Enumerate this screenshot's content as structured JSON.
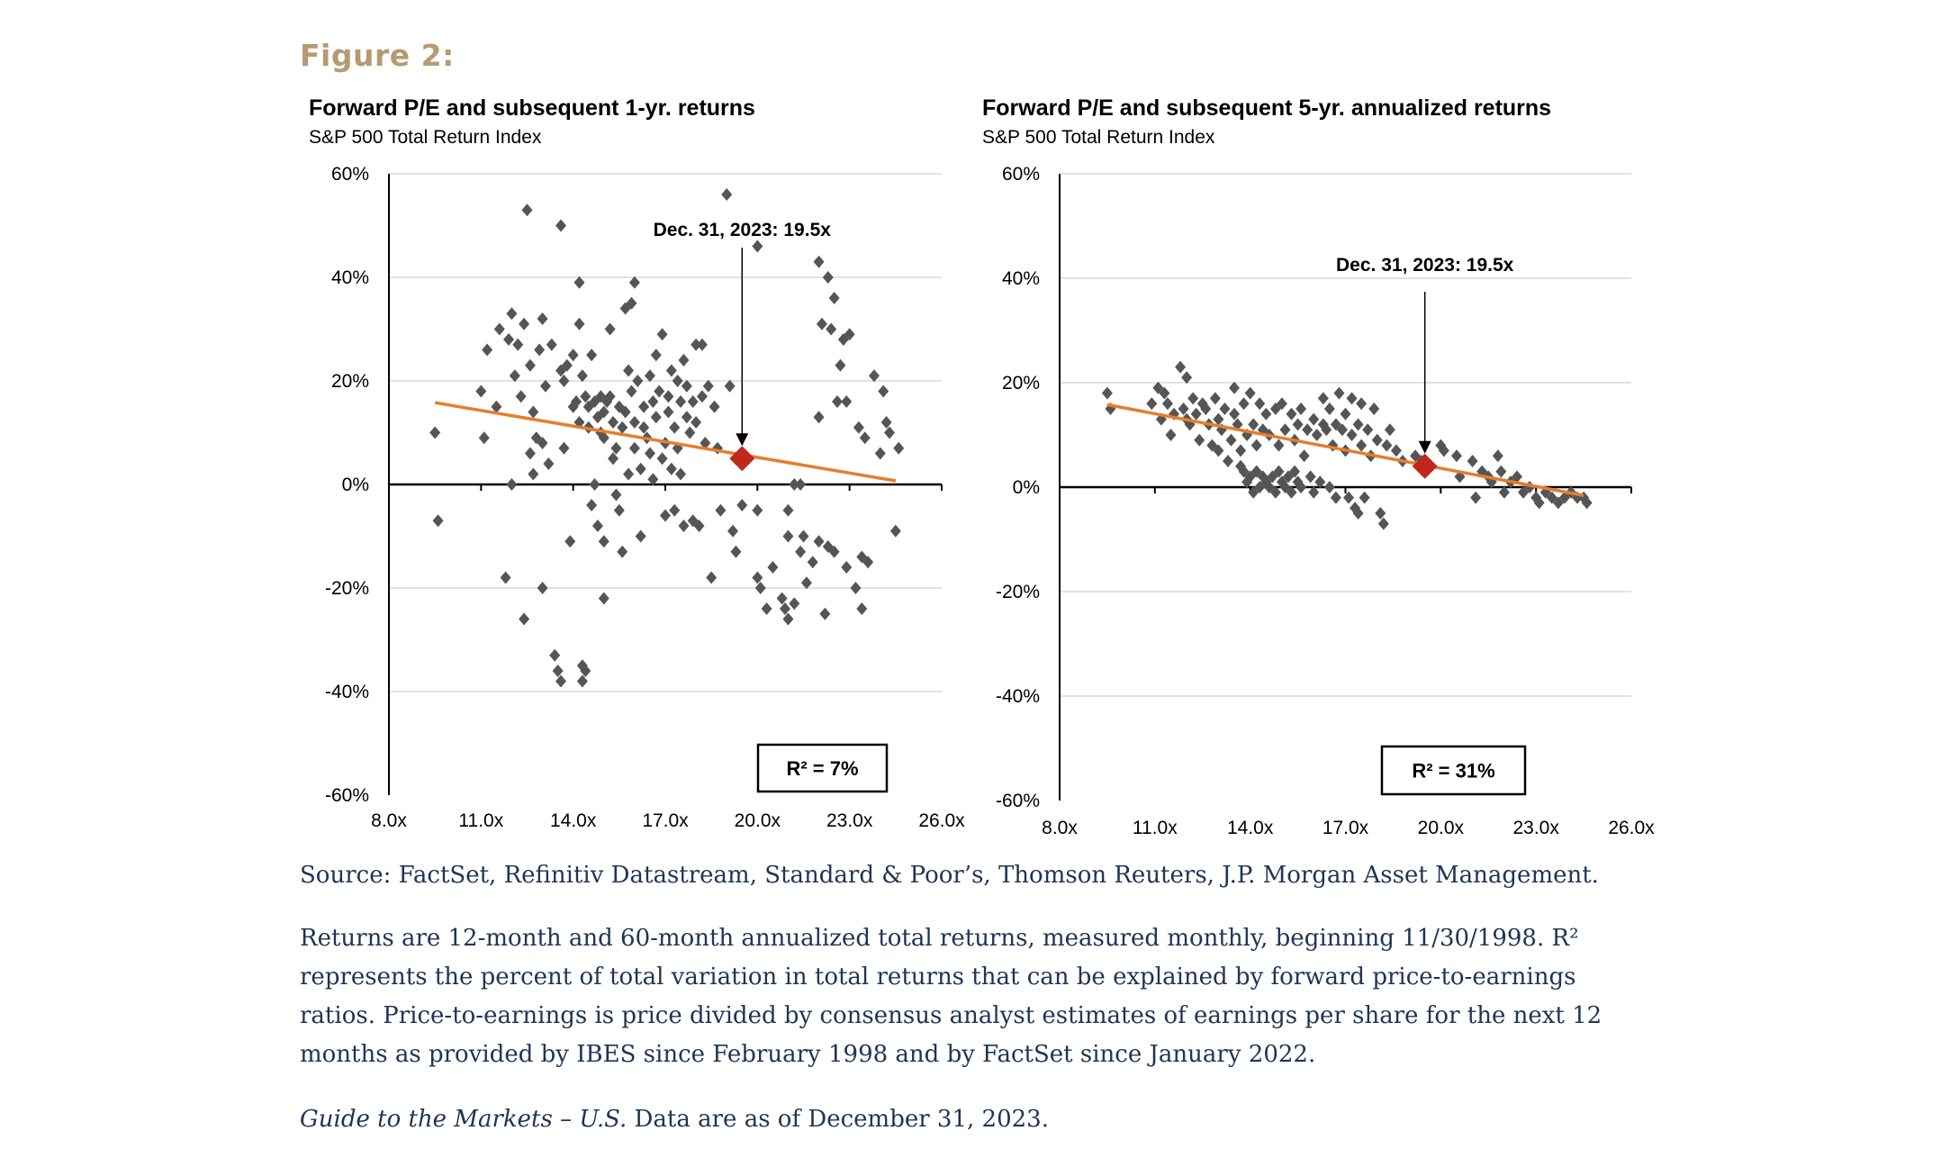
{
  "figure_label": "Figure 2:",
  "source": "Source: FactSet, Refinitiv Datastream, Standard & Poor’s, Thomson Reuters, J.P. Morgan Asset Management.",
  "note": "Returns are 12-month and 60-month annualized total returns, measured monthly, beginning 11/30/1998. R² represents the percent of total variation in total returns that can be explained by forward price-to-earnings ratios. Price-to-earnings is price divided by consensus analyst estimates of earnings per share for the next 12 months as provided by IBES since February 1998 and by FactSet since January 2022.",
  "guide_italic": "Guide to the Markets – U.S.",
  "guide_rest": " Data are as of December 31, 2023.",
  "colors": {
    "points": "#555555",
    "trend": "#e87d2a",
    "highlight": "#c0281e",
    "label": "#b59a73",
    "text": "#1f3456"
  },
  "chart_data": [
    {
      "type": "scatter",
      "title": "Forward P/E and subsequent 1-yr. returns",
      "subtitle": "S&P 500 Total Return Index",
      "xlim": [
        8,
        26
      ],
      "ylim": [
        -60,
        60
      ],
      "x_ticks": [
        "8.0x",
        "11.0x",
        "14.0x",
        "17.0x",
        "20.0x",
        "23.0x",
        "26.0x"
      ],
      "y_ticks": [
        "60%",
        "40%",
        "20%",
        "0%",
        "-20%",
        "-40%",
        "-60%"
      ],
      "annotation": "Dec. 31, 2023:  19.5x",
      "highlight": {
        "x": 19.5,
        "y": 5
      },
      "trendline": [
        [
          9.5,
          15.8
        ],
        [
          24.5,
          0.7
        ]
      ],
      "r_squared_label": "R²  = 7%",
      "points": [
        [
          9.5,
          10
        ],
        [
          9.6,
          -7
        ],
        [
          11.0,
          18
        ],
        [
          11.1,
          9
        ],
        [
          11.2,
          26
        ],
        [
          11.5,
          15
        ],
        [
          11.6,
          30
        ],
        [
          11.8,
          -18
        ],
        [
          11.9,
          28
        ],
        [
          12.0,
          33
        ],
        [
          12.0,
          0
        ],
        [
          12.1,
          21
        ],
        [
          12.2,
          27
        ],
        [
          12.3,
          17
        ],
        [
          12.4,
          31
        ],
        [
          12.4,
          -26
        ],
        [
          12.5,
          53
        ],
        [
          12.6,
          6
        ],
        [
          12.6,
          23
        ],
        [
          12.7,
          14
        ],
        [
          12.7,
          2
        ],
        [
          12.8,
          9
        ],
        [
          12.9,
          26
        ],
        [
          13.0,
          -20
        ],
        [
          13.0,
          8
        ],
        [
          13.0,
          32
        ],
        [
          13.1,
          19
        ],
        [
          13.2,
          4
        ],
        [
          13.3,
          27
        ],
        [
          13.4,
          -33
        ],
        [
          13.5,
          -36
        ],
        [
          13.6,
          50
        ],
        [
          13.6,
          -38
        ],
        [
          13.6,
          22
        ],
        [
          13.7,
          7
        ],
        [
          13.7,
          20
        ],
        [
          13.8,
          23
        ],
        [
          13.9,
          -11
        ],
        [
          14.0,
          25
        ],
        [
          14.0,
          15
        ],
        [
          14.1,
          16
        ],
        [
          14.2,
          31
        ],
        [
          14.2,
          39
        ],
        [
          14.2,
          12
        ],
        [
          14.3,
          -35
        ],
        [
          14.3,
          -38
        ],
        [
          14.3,
          21
        ],
        [
          14.4,
          17
        ],
        [
          14.4,
          -36
        ],
        [
          14.5,
          15
        ],
        [
          14.5,
          11
        ],
        [
          14.6,
          25
        ],
        [
          14.6,
          -4
        ],
        [
          14.7,
          16
        ],
        [
          14.7,
          0
        ],
        [
          14.8,
          -8
        ],
        [
          14.8,
          13
        ],
        [
          14.9,
          10
        ],
        [
          14.9,
          17
        ],
        [
          15.0,
          14
        ],
        [
          15.0,
          9
        ],
        [
          15.0,
          -11
        ],
        [
          15.0,
          -22
        ],
        [
          15.1,
          16
        ],
        [
          15.2,
          17
        ],
        [
          15.2,
          30
        ],
        [
          15.3,
          12
        ],
        [
          15.3,
          5
        ],
        [
          15.4,
          7
        ],
        [
          15.4,
          -2
        ],
        [
          15.5,
          -5
        ],
        [
          15.5,
          15
        ],
        [
          15.6,
          -13
        ],
        [
          15.6,
          11
        ],
        [
          15.7,
          34
        ],
        [
          15.7,
          14
        ],
        [
          15.8,
          22
        ],
        [
          15.8,
          2
        ],
        [
          15.9,
          35
        ],
        [
          15.9,
          18
        ],
        [
          16.0,
          39
        ],
        [
          16.0,
          12
        ],
        [
          16.0,
          7
        ],
        [
          16.1,
          20
        ],
        [
          16.2,
          3
        ],
        [
          16.2,
          -10
        ],
        [
          16.3,
          15
        ],
        [
          16.3,
          11
        ],
        [
          16.4,
          9
        ],
        [
          16.5,
          21
        ],
        [
          16.5,
          6
        ],
        [
          16.6,
          16
        ],
        [
          16.6,
          1
        ],
        [
          16.7,
          25
        ],
        [
          16.7,
          13
        ],
        [
          16.8,
          18
        ],
        [
          16.9,
          5
        ],
        [
          16.9,
          29
        ],
        [
          17.0,
          8
        ],
        [
          17.0,
          -6
        ],
        [
          17.1,
          14
        ],
        [
          17.1,
          17
        ],
        [
          17.2,
          22
        ],
        [
          17.2,
          3
        ],
        [
          17.3,
          -5
        ],
        [
          17.3,
          11
        ],
        [
          17.4,
          20
        ],
        [
          17.4,
          7
        ],
        [
          17.5,
          16
        ],
        [
          17.5,
          2
        ],
        [
          17.6,
          24
        ],
        [
          17.6,
          -8
        ],
        [
          17.7,
          13
        ],
        [
          17.7,
          19
        ],
        [
          17.8,
          10
        ],
        [
          17.9,
          -7
        ],
        [
          17.9,
          16
        ],
        [
          18.0,
          27
        ],
        [
          18.0,
          12
        ],
        [
          18.1,
          -8
        ],
        [
          18.2,
          27
        ],
        [
          18.2,
          17
        ],
        [
          18.3,
          8
        ],
        [
          18.4,
          19
        ],
        [
          18.5,
          -18
        ],
        [
          18.6,
          15
        ],
        [
          18.7,
          7
        ],
        [
          18.8,
          -5
        ],
        [
          19.0,
          56
        ],
        [
          19.1,
          19
        ],
        [
          19.2,
          -9
        ],
        [
          19.3,
          -13
        ],
        [
          19.5,
          -4
        ],
        [
          20.0,
          -18
        ],
        [
          20.0,
          -5
        ],
        [
          20.0,
          46
        ],
        [
          20.1,
          -20
        ],
        [
          20.3,
          -24
        ],
        [
          20.5,
          -16
        ],
        [
          20.8,
          -22
        ],
        [
          20.9,
          -24
        ],
        [
          21.0,
          -26
        ],
        [
          21.0,
          -5
        ],
        [
          21.0,
          -10
        ],
        [
          21.2,
          -23
        ],
        [
          21.2,
          0
        ],
        [
          21.4,
          0
        ],
        [
          21.4,
          -13
        ],
        [
          21.5,
          -10
        ],
        [
          21.6,
          -19
        ],
        [
          21.8,
          -15
        ],
        [
          22.0,
          -11
        ],
        [
          22.0,
          13
        ],
        [
          22.0,
          43
        ],
        [
          22.1,
          31
        ],
        [
          22.2,
          -25
        ],
        [
          22.3,
          -12
        ],
        [
          22.3,
          40
        ],
        [
          22.4,
          30
        ],
        [
          22.5,
          -13
        ],
        [
          22.5,
          36
        ],
        [
          22.6,
          16
        ],
        [
          22.7,
          23
        ],
        [
          22.8,
          28
        ],
        [
          22.9,
          -16
        ],
        [
          22.9,
          16
        ],
        [
          23.0,
          29
        ],
        [
          23.2,
          -20
        ],
        [
          23.3,
          11
        ],
        [
          23.4,
          -14
        ],
        [
          23.5,
          9
        ],
        [
          23.4,
          -24
        ],
        [
          23.6,
          -15
        ],
        [
          23.8,
          21
        ],
        [
          24.0,
          6
        ],
        [
          24.1,
          18
        ],
        [
          24.2,
          12
        ],
        [
          24.3,
          10
        ],
        [
          24.5,
          -9
        ],
        [
          24.6,
          7
        ]
      ]
    },
    {
      "type": "scatter",
      "title": "Forward P/E and subsequent 5-yr. annualized returns",
      "subtitle": "S&P 500 Total Return Index",
      "xlim": [
        8,
        26
      ],
      "ylim": [
        -60,
        60
      ],
      "x_ticks": [
        "8.0x",
        "11.0x",
        "14.0x",
        "17.0x",
        "20.0x",
        "23.0x",
        "26.0x"
      ],
      "y_ticks": [
        "60%",
        "40%",
        "20%",
        "0%",
        "-20%",
        "-40%",
        "-60%"
      ],
      "annotation": "Dec. 31, 2023:  19.5x",
      "highlight": {
        "x": 19.5,
        "y": 4
      },
      "trendline": [
        [
          9.5,
          15.8
        ],
        [
          24.5,
          -1.6
        ]
      ],
      "r_squared_label": "R²  = 31%",
      "points": [
        [
          9.5,
          18
        ],
        [
          9.6,
          15
        ],
        [
          10.9,
          16
        ],
        [
          11.1,
          19
        ],
        [
          11.2,
          13
        ],
        [
          11.3,
          18
        ],
        [
          11.4,
          16
        ],
        [
          11.5,
          10
        ],
        [
          11.6,
          14
        ],
        [
          11.8,
          23
        ],
        [
          11.9,
          15
        ],
        [
          12.0,
          21
        ],
        [
          12.0,
          13
        ],
        [
          12.1,
          12
        ],
        [
          12.2,
          17
        ],
        [
          12.3,
          14
        ],
        [
          12.4,
          9
        ],
        [
          12.5,
          16
        ],
        [
          12.6,
          15
        ],
        [
          12.7,
          12
        ],
        [
          12.8,
          8
        ],
        [
          12.9,
          17
        ],
        [
          13.0,
          13
        ],
        [
          13.0,
          7
        ],
        [
          13.1,
          11
        ],
        [
          13.2,
          15
        ],
        [
          13.3,
          5
        ],
        [
          13.4,
          9
        ],
        [
          13.5,
          14
        ],
        [
          13.5,
          19
        ],
        [
          13.6,
          12
        ],
        [
          13.7,
          4
        ],
        [
          13.7,
          7
        ],
        [
          13.8,
          3
        ],
        [
          13.8,
          16
        ],
        [
          13.9,
          1
        ],
        [
          13.9,
          10
        ],
        [
          14.0,
          18
        ],
        [
          14.0,
          2
        ],
        [
          14.1,
          -1
        ],
        [
          14.1,
          12
        ],
        [
          14.2,
          3
        ],
        [
          14.2,
          8
        ],
        [
          14.3,
          0
        ],
        [
          14.3,
          16
        ],
        [
          14.4,
          2
        ],
        [
          14.4,
          11
        ],
        [
          14.5,
          1
        ],
        [
          14.5,
          14
        ],
        [
          14.6,
          0
        ],
        [
          14.6,
          10
        ],
        [
          14.7,
          2
        ],
        [
          14.8,
          15
        ],
        [
          14.8,
          -1
        ],
        [
          14.9,
          3
        ],
        [
          14.9,
          8
        ],
        [
          15.0,
          1
        ],
        [
          15.0,
          16
        ],
        [
          15.1,
          0
        ],
        [
          15.1,
          11
        ],
        [
          15.2,
          2
        ],
        [
          15.3,
          14
        ],
        [
          15.3,
          -1
        ],
        [
          15.4,
          9
        ],
        [
          15.4,
          3
        ],
        [
          15.5,
          12
        ],
        [
          15.5,
          1
        ],
        [
          15.6,
          15
        ],
        [
          15.6,
          0
        ],
        [
          15.7,
          6
        ],
        [
          15.8,
          11
        ],
        [
          15.9,
          2
        ],
        [
          16.0,
          13
        ],
        [
          16.0,
          -1
        ],
        [
          16.1,
          10
        ],
        [
          16.2,
          1
        ],
        [
          16.3,
          12
        ],
        [
          16.3,
          17
        ],
        [
          16.4,
          11
        ],
        [
          16.5,
          15
        ],
        [
          16.5,
          0
        ],
        [
          16.6,
          8
        ],
        [
          16.7,
          -2
        ],
        [
          16.7,
          12
        ],
        [
          16.8,
          18
        ],
        [
          16.9,
          11
        ],
        [
          17.0,
          7
        ],
        [
          17.0,
          14
        ],
        [
          17.1,
          -2
        ],
        [
          17.2,
          10
        ],
        [
          17.2,
          17
        ],
        [
          17.3,
          -4
        ],
        [
          17.4,
          12
        ],
        [
          17.4,
          -5
        ],
        [
          17.5,
          8
        ],
        [
          17.5,
          16
        ],
        [
          17.6,
          -2
        ],
        [
          17.7,
          11
        ],
        [
          17.8,
          6
        ],
        [
          17.9,
          15
        ],
        [
          18.0,
          9
        ],
        [
          18.1,
          -5
        ],
        [
          18.2,
          -7
        ],
        [
          18.3,
          8
        ],
        [
          18.4,
          11
        ],
        [
          18.6,
          7
        ],
        [
          18.8,
          5
        ],
        [
          19.2,
          6
        ],
        [
          19.4,
          5
        ],
        [
          19.6,
          4
        ],
        [
          20.0,
          8
        ],
        [
          20.1,
          7
        ],
        [
          20.5,
          6
        ],
        [
          20.6,
          2
        ],
        [
          21.0,
          5
        ],
        [
          21.1,
          -2
        ],
        [
          21.3,
          3
        ],
        [
          21.5,
          2
        ],
        [
          21.6,
          1
        ],
        [
          21.8,
          6
        ],
        [
          21.9,
          3
        ],
        [
          22.0,
          -1
        ],
        [
          22.2,
          1
        ],
        [
          22.4,
          2
        ],
        [
          22.6,
          -1
        ],
        [
          22.8,
          0
        ],
        [
          23.0,
          -2
        ],
        [
          23.1,
          -3
        ],
        [
          23.3,
          -1
        ],
        [
          23.5,
          -2
        ],
        [
          23.7,
          -3
        ],
        [
          23.9,
          -2
        ],
        [
          24.1,
          -1
        ],
        [
          24.3,
          -2
        ],
        [
          24.5,
          -2
        ],
        [
          24.6,
          -3
        ]
      ]
    }
  ]
}
